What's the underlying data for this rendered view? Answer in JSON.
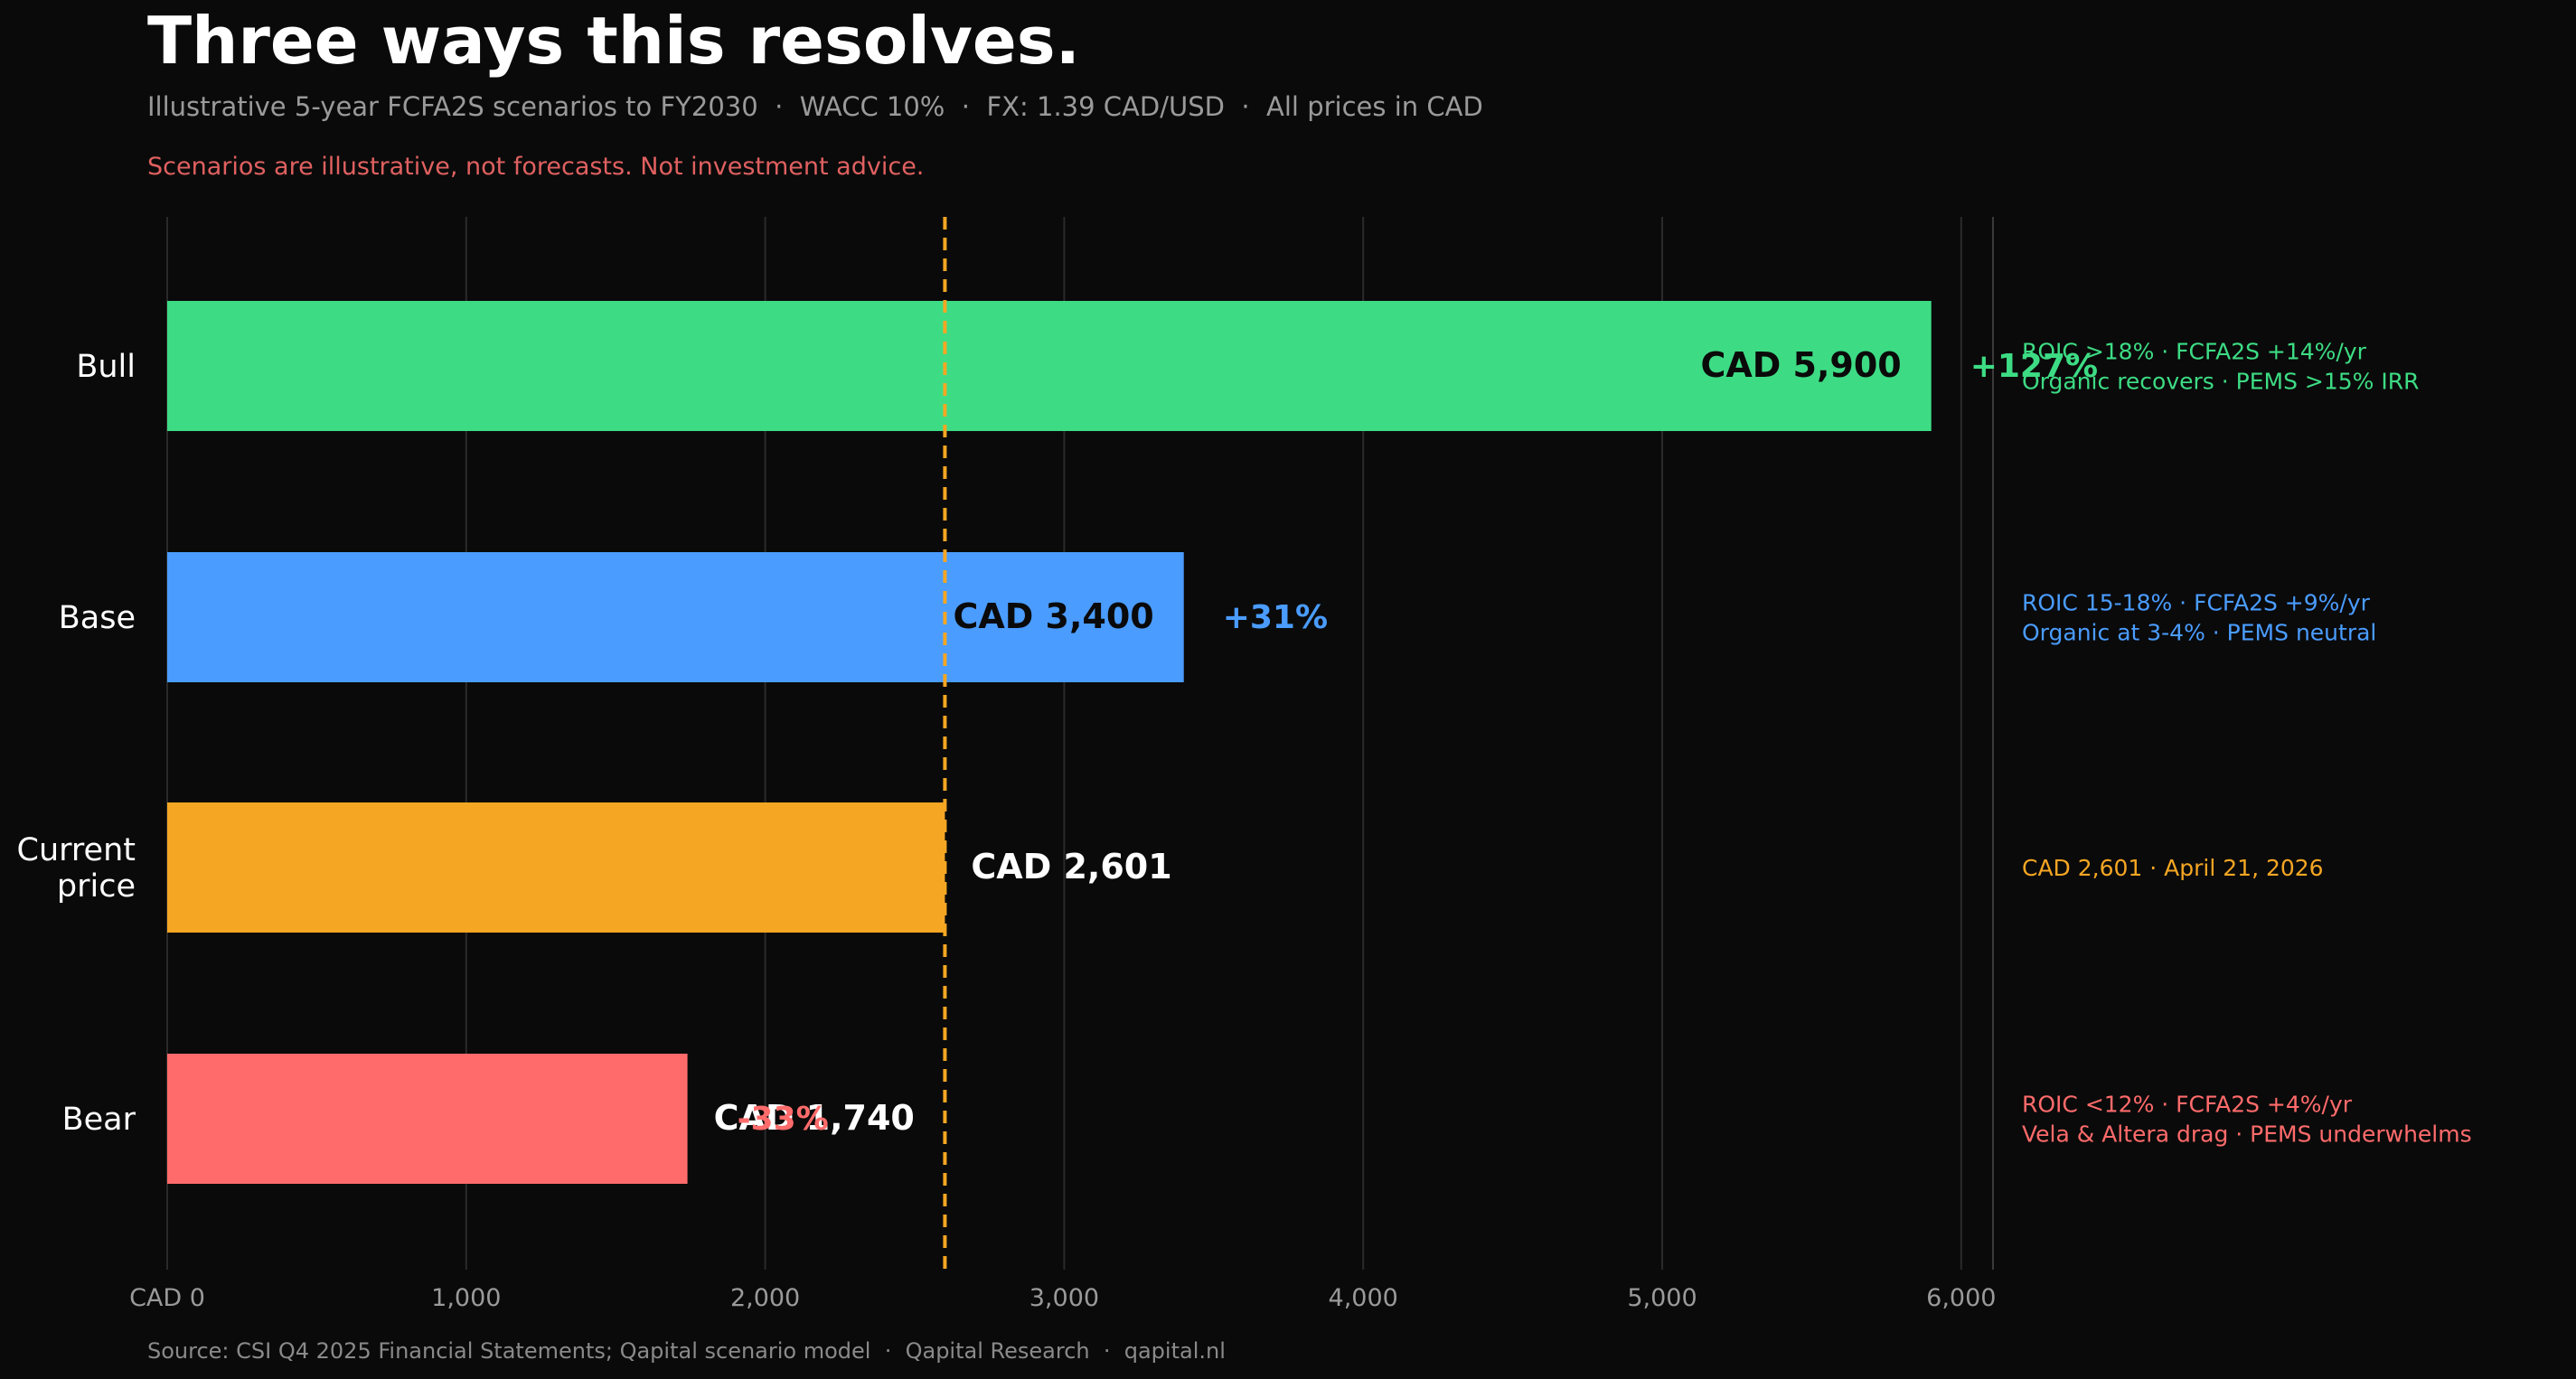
{
  "header": {
    "title": "Three ways this resolves.",
    "subtitle": "Illustrative 5-year FCFA2S scenarios to FY2030  ·  WACC 10%  ·  FX: 1.39 CAD/USD  ·  All prices in CAD",
    "disclaimer": "Scenarios are illustrative, not forecasts. Not investment advice."
  },
  "footer": {
    "source": "Source: CSI Q4 2025 Financial Statements; Qapital scenario model  ·  Qapital Research  ·  qapital.nl"
  },
  "colors": {
    "background": "#0a0a0a",
    "bull": "#3ddc84",
    "base": "#4a9cff",
    "current": "#f5a623",
    "bear": "#ff6b6b",
    "reference_line": "#f5a623",
    "grid": "#2a2a2a",
    "tick_text": "#9a9a9a",
    "title": "#ffffff",
    "subtitle": "#9a9a9a",
    "disclaimer": "#e06060"
  },
  "chart_data": {
    "type": "bar",
    "orientation": "horizontal",
    "xlim": [
      0,
      6100
    ],
    "xticks": [
      0,
      1000,
      2000,
      3000,
      4000,
      5000,
      6000
    ],
    "xtick_labels": [
      "CAD 0",
      "1,000",
      "2,000",
      "3,000",
      "4,000",
      "5,000",
      "6,000"
    ],
    "reference_value": 2601,
    "categories": [
      {
        "key": "bull",
        "label_lines": [
          "Bull"
        ],
        "value": 5900,
        "value_label": "CAD 5,900",
        "change": "+127%",
        "notes": [
          "ROIC >18%  ·  FCFA2S +14%/yr",
          "Organic recovers  ·  PEMS >15% IRR"
        ]
      },
      {
        "key": "base",
        "label_lines": [
          "Base"
        ],
        "value": 3400,
        "value_label": "CAD 3,400",
        "change": "+31%",
        "notes": [
          "ROIC 15-18%  ·  FCFA2S +9%/yr",
          "Organic at 3-4%  ·  PEMS neutral"
        ]
      },
      {
        "key": "current",
        "label_lines": [
          "Current",
          "price"
        ],
        "value": 2601,
        "value_label": "CAD 2,601",
        "change": "",
        "notes": [
          "CAD 2,601  ·  April 21, 2026"
        ]
      },
      {
        "key": "bear",
        "label_lines": [
          "Bear"
        ],
        "value": 1740,
        "value_label": "CAD 1,740",
        "change": "-33%",
        "notes": [
          "ROIC <12%  ·  FCFA2S +4%/yr",
          "Vela & Altera drag  ·  PEMS underwhelms"
        ]
      }
    ]
  }
}
